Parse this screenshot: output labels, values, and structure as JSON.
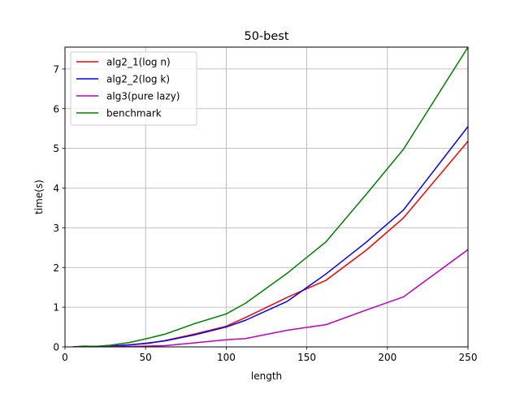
{
  "chart_data": {
    "type": "line",
    "title": "50-best",
    "xlabel": "length",
    "ylabel": "time(s)",
    "xlim": [
      0,
      250
    ],
    "ylim": [
      0,
      7.55
    ],
    "xticks": [
      0,
      50,
      100,
      150,
      200,
      250
    ],
    "yticks": [
      0,
      1,
      2,
      3,
      4,
      5,
      6,
      7
    ],
    "grid": true,
    "legend_position": "top-left",
    "series": [
      {
        "name": "alg2_1(log n)",
        "color": "#ff0000",
        "x": [
          5,
          12,
          18,
          28,
          40,
          52,
          62,
          80,
          100,
          112,
          138,
          162,
          187,
          210,
          250
        ],
        "y": [
          0,
          0.01,
          0.01,
          0.02,
          0.05,
          0.09,
          0.16,
          0.32,
          0.52,
          0.74,
          1.25,
          1.68,
          2.44,
          3.25,
          5.18
        ]
      },
      {
        "name": "alg2_2(log k)",
        "color": "#0000ff",
        "x": [
          5,
          12,
          18,
          28,
          40,
          52,
          62,
          80,
          100,
          112,
          138,
          162,
          187,
          210,
          250
        ],
        "y": [
          0,
          0.01,
          0.01,
          0.02,
          0.05,
          0.1,
          0.15,
          0.3,
          0.5,
          0.67,
          1.15,
          1.84,
          2.64,
          3.45,
          5.55
        ]
      },
      {
        "name": "alg3(pure lazy)",
        "color": "#bf00bf",
        "x": [
          5,
          12,
          18,
          28,
          40,
          52,
          62,
          80,
          100,
          112,
          138,
          162,
          187,
          210,
          250
        ],
        "y": [
          0,
          0,
          0.01,
          0.01,
          0.01,
          0.02,
          0.03,
          0.1,
          0.18,
          0.21,
          0.42,
          0.56,
          0.93,
          1.26,
          2.45
        ]
      },
      {
        "name": "benchmark",
        "color": "#008000",
        "x": [
          5,
          12,
          18,
          28,
          40,
          52,
          62,
          80,
          100,
          112,
          138,
          162,
          187,
          210,
          250
        ],
        "y": [
          0,
          0.02,
          0.01,
          0.04,
          0.11,
          0.22,
          0.32,
          0.58,
          0.83,
          1.1,
          1.86,
          2.65,
          3.85,
          4.98,
          7.55
        ]
      }
    ]
  }
}
